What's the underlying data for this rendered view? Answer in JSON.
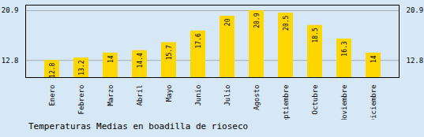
{
  "chart_data": {
    "type": "bar",
    "title": "Temperaturas Medias en boadilla de rioseco",
    "categories": [
      "Enero",
      "Febrero",
      "Marzo",
      "Abril",
      "Mayo",
      "Junio",
      "Julio",
      "Agosto",
      "Septiembre",
      "Octubre",
      "Noviembre",
      "Diciembre"
    ],
    "values": [
      12.8,
      13.2,
      14.0,
      14.4,
      15.7,
      17.6,
      20.0,
      20.9,
      20.5,
      18.5,
      16.3,
      14.0
    ],
    "color": "#FFD700",
    "ylim": [
      10.0,
      21.8
    ],
    "yticks": [
      12.8,
      20.9
    ],
    "grid": true,
    "data_labels": true
  }
}
